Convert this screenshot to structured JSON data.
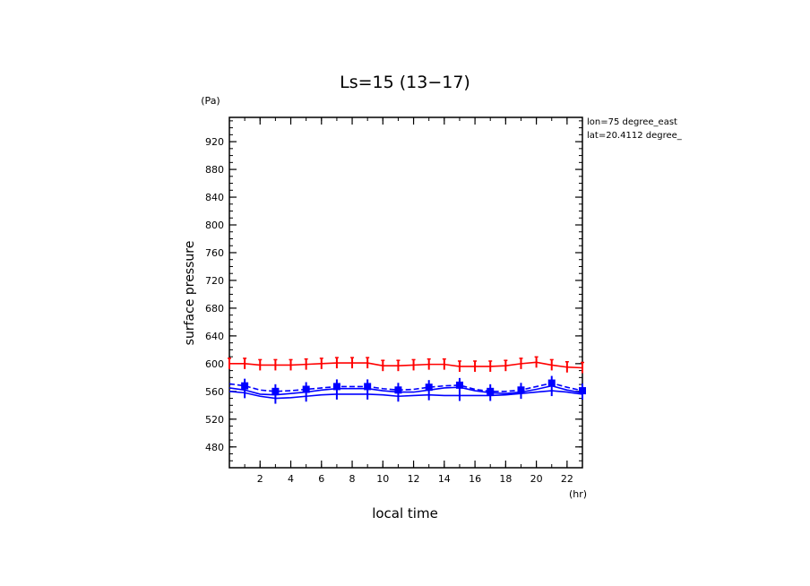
{
  "chart_data": {
    "type": "line",
    "title": "Ls=15 (13−17)",
    "ylabel": "surface pressure",
    "yunit": "(Pa)",
    "xlabel": "local time",
    "xunit": "(hr)",
    "annotation": [
      "lon=75 degree_east",
      "lat=20.4112 degree_"
    ],
    "xlim": [
      0,
      23
    ],
    "ylim": [
      450,
      955
    ],
    "xticks": [
      2,
      4,
      6,
      8,
      10,
      12,
      14,
      16,
      18,
      20,
      22
    ],
    "yticks": [
      480,
      520,
      560,
      600,
      640,
      680,
      720,
      760,
      800,
      840,
      880,
      920
    ],
    "x": [
      0,
      1,
      2,
      3,
      4,
      5,
      6,
      7,
      8,
      9,
      10,
      11,
      12,
      13,
      14,
      15,
      16,
      17,
      18,
      19,
      20,
      21,
      22,
      23
    ],
    "series": [
      {
        "color": "#ff0000",
        "style": "solid",
        "values": [
          600,
          600,
          598,
          598,
          598,
          599,
          600,
          601,
          601,
          601,
          597,
          597,
          598,
          599,
          599,
          596,
          596,
          596,
          597,
          600,
          602,
          598,
          595,
          594
        ]
      },
      {
        "color": "#0000ff",
        "style": "dashed",
        "values": [
          571,
          568,
          562,
          560,
          561,
          563,
          565,
          567,
          567,
          567,
          564,
          562,
          563,
          566,
          568,
          569,
          563,
          560,
          560,
          562,
          567,
          572,
          566,
          561
        ]
      },
      {
        "color": "#0000ff",
        "style": "solid",
        "values": [
          565,
          562,
          556,
          555,
          557,
          559,
          562,
          564,
          564,
          564,
          561,
          559,
          559,
          562,
          565,
          566,
          561,
          558,
          557,
          559,
          563,
          568,
          562,
          558
        ]
      },
      {
        "color": "#0000ff",
        "style": "solid",
        "values": [
          560,
          558,
          553,
          550,
          551,
          553,
          555,
          556,
          556,
          556,
          555,
          553,
          554,
          555,
          554,
          554,
          554,
          554,
          555,
          557,
          559,
          561,
          559,
          556
        ]
      }
    ]
  }
}
